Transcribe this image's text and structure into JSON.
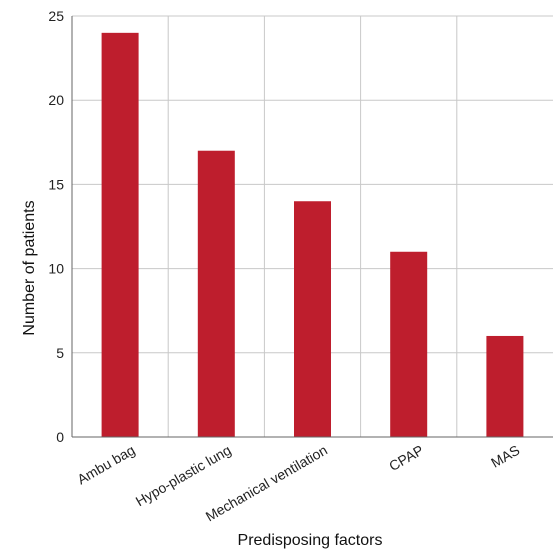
{
  "chart_data": {
    "type": "bar",
    "categories": [
      "Ambu bag",
      "Hypo-plastic lung",
      "Mechanical ventilation",
      "CPAP",
      "MAS"
    ],
    "values": [
      24,
      17,
      14,
      11,
      6
    ],
    "xlabel": "Predisposing factors",
    "ylabel": "Number of patients",
    "ylim": [
      0,
      25
    ],
    "yticks": [
      0,
      5,
      10,
      15,
      20,
      25
    ],
    "grid": true,
    "bar_color": "#be1e2d",
    "grid_color": "#c8c8c8",
    "axis_color": "#666666"
  }
}
